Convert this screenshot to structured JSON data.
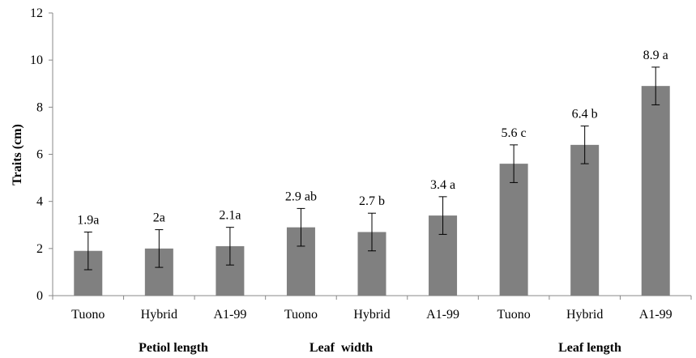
{
  "chart_data": {
    "type": "bar",
    "title": "",
    "xlabel": "",
    "ylabel": "Traits (cm)",
    "ylim": [
      0,
      12
    ],
    "yticks": [
      0,
      2,
      4,
      6,
      8,
      10,
      12
    ],
    "grid": false,
    "bar_color": "#808080",
    "categories": [
      "Tuono",
      "Hybrid",
      "A1-99",
      "Tuono",
      "Hybrid",
      "A1-99",
      "Tuono",
      "Hybrid",
      "A1-99"
    ],
    "groups": [
      "Petiol length",
      "Leaf  width",
      "Leaf length"
    ],
    "values": [
      1.9,
      2.0,
      2.1,
      2.9,
      2.7,
      3.4,
      5.6,
      6.4,
      8.9
    ],
    "error": [
      0.8,
      0.8,
      0.8,
      0.8,
      0.8,
      0.8,
      0.8,
      0.8,
      0.8
    ],
    "data_labels": [
      "1.9a",
      "2a",
      "2.1a",
      "2.9 ab",
      "2.7 b",
      "3.4 a",
      "5.6 c",
      "6.4 b",
      "8.9 a"
    ]
  }
}
